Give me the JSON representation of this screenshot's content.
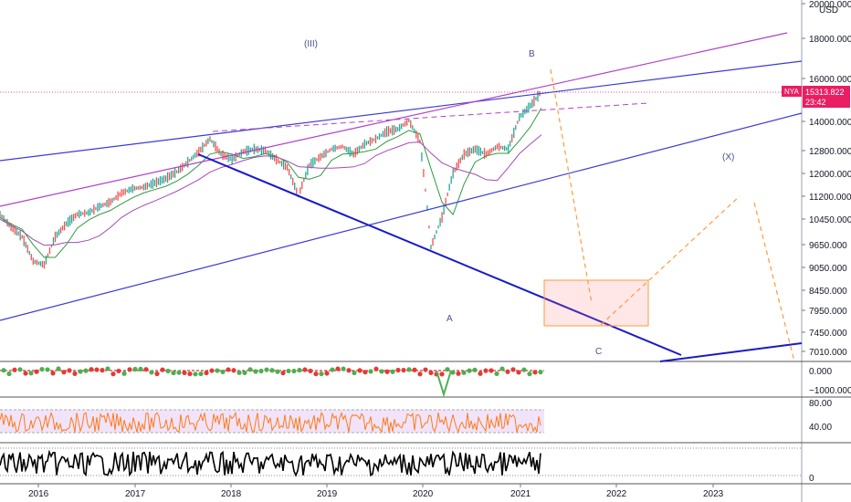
{
  "chart_data": {
    "type": "line",
    "symbol": "NYA",
    "currency": "USD",
    "last_price": "15313.822",
    "countdown": "23:42",
    "price_ticks": [
      "20000.000",
      "18000.000",
      "16000.000",
      "14000.000",
      "12800.000",
      "12000.000",
      "11200.000",
      "10450.000",
      "9650.000",
      "9050.000",
      "8450.000",
      "7950.000",
      "7450.000",
      "7010.000"
    ],
    "x_ticks": [
      "2016",
      "2017",
      "2018",
      "2019",
      "2020",
      "2021",
      "2022",
      "2023"
    ],
    "wave_labels": [
      "(III)",
      "B",
      "(X)",
      "A",
      "C"
    ],
    "series": [
      {
        "values": [
          10600,
          10200,
          9900,
          9200,
          9100,
          9900,
          10300,
          10600,
          10650,
          10850,
          11000,
          11300,
          11450,
          11500,
          11650,
          11800,
          12050,
          12400,
          12800,
          13300,
          12700,
          12500,
          12800,
          12900,
          12850,
          12500,
          12200,
          11200,
          12300,
          12600,
          12900,
          13000,
          12700,
          13100,
          13300,
          13600,
          13700,
          14050,
          13200,
          9600,
          10500,
          12000,
          12700,
          12900,
          12700,
          13000,
          12900,
          14200,
          14700,
          15350
        ]
      }
    ],
    "x_range": [
      2015.6,
      2024.0
    ],
    "indicator_1": {
      "ticks": [
        "0.000",
        "−1000.000"
      ]
    },
    "indicator_2": {
      "ticks": [
        "80.00",
        "40.00"
      ]
    },
    "indicator_3": {
      "ticks": [
        "0"
      ]
    },
    "colors": {
      "price": "#26a69a",
      "up": "#26a69a",
      "down": "#ef5350",
      "blue_line": "#3b3bd4",
      "dark_blue": "#1a1ac8",
      "purple": "#b041c9",
      "orange": "#ff9a3c",
      "rsi": "#ff7a1a",
      "last_price_bg": "#e91e63"
    }
  }
}
